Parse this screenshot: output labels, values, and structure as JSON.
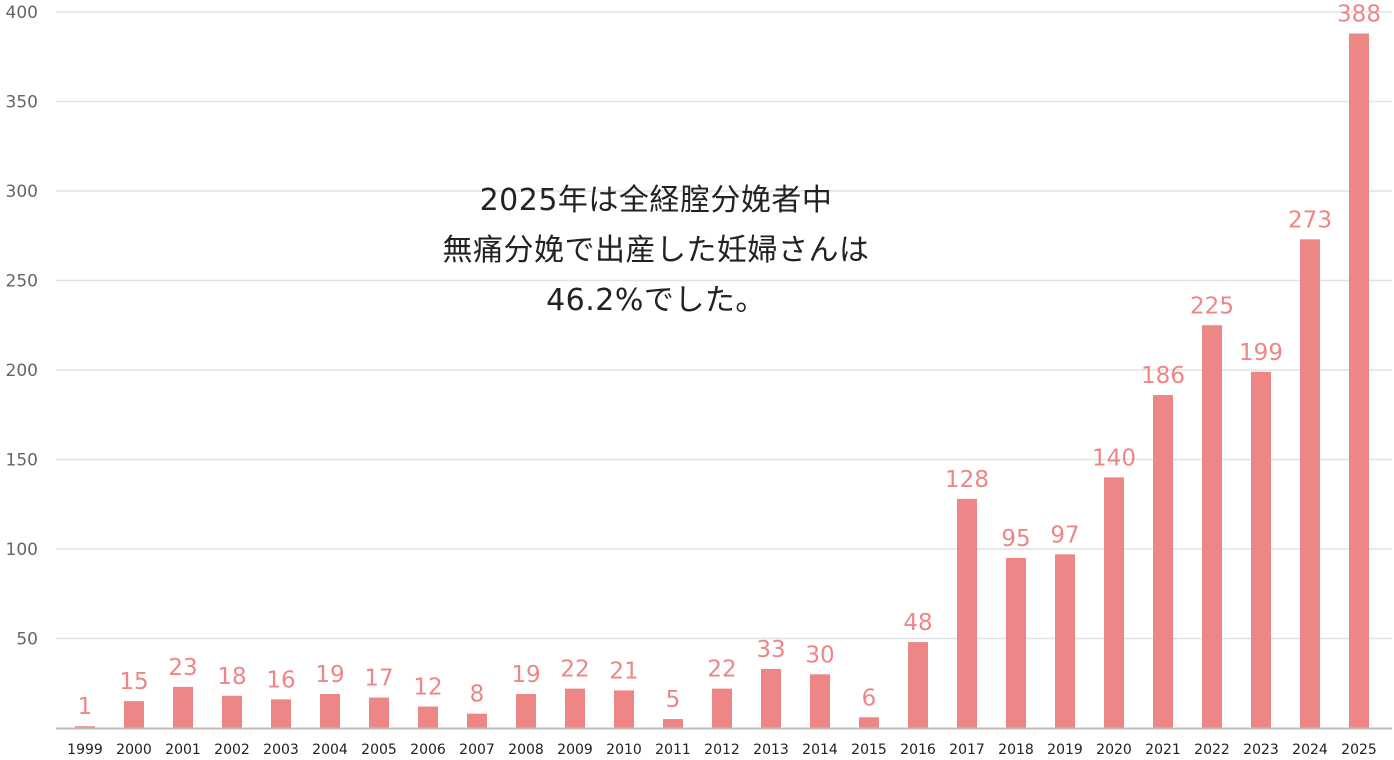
{
  "chart_data": {
    "type": "bar",
    "categories": [
      "1999",
      "2000",
      "2001",
      "2002",
      "2003",
      "2004",
      "2005",
      "2006",
      "2007",
      "2008",
      "2009",
      "2010",
      "2011",
      "2012",
      "2013",
      "2014",
      "2015",
      "2016",
      "2017",
      "2018",
      "2019",
      "2020",
      "2021",
      "2022",
      "2023",
      "2024",
      "2025"
    ],
    "values": [
      1,
      15,
      23,
      18,
      16,
      19,
      17,
      12,
      8,
      19,
      22,
      21,
      5,
      22,
      33,
      30,
      6,
      48,
      128,
      95,
      97,
      140,
      186,
      225,
      199,
      273,
      388
    ],
    "title": "",
    "xlabel": "",
    "ylabel": "",
    "ylim": [
      0,
      400
    ],
    "yticks": [
      50,
      100,
      150,
      200,
      250,
      300,
      350,
      400
    ],
    "grid": true,
    "data_labels": true,
    "annotation": [
      "2025年は全経腟分娩者中",
      "無痛分娩で出産した妊婦さんは",
      "46.2%でした。"
    ]
  },
  "colors": {
    "bar": "#ee8686",
    "label": "#ee8686",
    "grid": "#e2e2e2",
    "axis": "#bdbdbd",
    "ytick_text": "#666666",
    "xtick_text": "#222222",
    "annotation_text": "#222222"
  }
}
